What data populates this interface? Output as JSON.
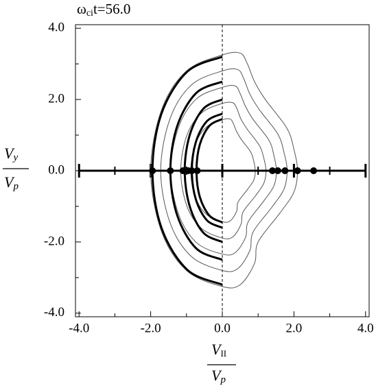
{
  "chart_data": {
    "type": "contour",
    "title": {
      "symbol": "ω",
      "subscript": "ci",
      "rest": "t=56.0"
    },
    "xlabel": {
      "numerator": {
        "main": "V",
        "sub": "II"
      },
      "denominator": {
        "main": "V",
        "sub": "p"
      }
    },
    "ylabel": {
      "numerator": {
        "main": "V",
        "sub": "y"
      },
      "denominator": {
        "main": "V",
        "sub": "p"
      }
    },
    "xlim": [
      -4.1,
      4.1
    ],
    "ylim": [
      -4.1,
      4.1
    ],
    "xticks": [
      {
        "value": -4,
        "label": "-4.0"
      },
      {
        "value": -2,
        "label": "-2.0"
      },
      {
        "value": 0,
        "label": "0.0"
      },
      {
        "value": 2,
        "label": "2.0"
      },
      {
        "value": 4,
        "label": "4.0"
      }
    ],
    "yticks": [
      {
        "value": -4,
        "label": "-4.0"
      },
      {
        "value": -2,
        "label": "-2.0"
      },
      {
        "value": 0,
        "label": "0.0"
      },
      {
        "value": 2,
        "label": "2.0"
      },
      {
        "value": 4,
        "label": "4.0"
      }
    ],
    "minor_ticks": [
      -3,
      -1,
      1,
      3
    ],
    "contour_color": "#555555",
    "arc_color": "#000000",
    "point_color": "#000000",
    "contours": [
      {
        "x": [
          0,
          0.5,
          0.7,
          0.9,
          1.2,
          1.8,
          2.0,
          2.1,
          2.0,
          1.6,
          1.0,
          0.9,
          0.5,
          0,
          -1.0,
          -1.7,
          -2.0,
          -1.7,
          -1.0
        ],
        "y": [
          3.25,
          3.3,
          3.0,
          2.5,
          2.0,
          1.2,
          0.6,
          0,
          -0.6,
          -1.2,
          -2.0,
          -2.6,
          -3.2,
          -3.25,
          -2.8,
          -1.7,
          0,
          1.7,
          2.8
        ]
      },
      {
        "x": [
          0,
          0.43,
          0.6,
          0.77,
          1.03,
          1.55,
          1.72,
          1.81,
          1.72,
          1.38,
          0.86,
          0.77,
          0.43,
          0,
          -0.86,
          -1.46,
          -1.72,
          -1.46,
          -0.86
        ],
        "y": [
          2.8,
          2.84,
          2.58,
          2.15,
          1.72,
          1.03,
          0.52,
          0,
          -0.52,
          -1.03,
          -1.72,
          -2.24,
          -2.75,
          -2.8,
          -2.41,
          -1.46,
          0,
          1.46,
          2.41
        ]
      },
      {
        "x": [
          0,
          0.36,
          0.5,
          0.65,
          0.86,
          1.3,
          1.44,
          1.51,
          1.44,
          1.15,
          0.72,
          0.65,
          0.36,
          0,
          -0.72,
          -1.22,
          -1.44,
          -1.22,
          -0.72
        ],
        "y": [
          2.34,
          2.38,
          2.16,
          1.8,
          1.44,
          0.86,
          0.43,
          0,
          -0.43,
          -0.86,
          -1.44,
          -1.87,
          -2.3,
          -2.34,
          -2.02,
          -1.22,
          0,
          1.22,
          2.02
        ]
      },
      {
        "x": [
          0,
          0.29,
          0.41,
          0.52,
          0.7,
          1.04,
          1.16,
          1.22,
          1.16,
          0.93,
          0.58,
          0.52,
          0.29,
          0,
          -0.58,
          -0.99,
          -1.16,
          -0.99,
          -0.58
        ],
        "y": [
          1.89,
          1.91,
          1.74,
          1.45,
          1.16,
          0.7,
          0.35,
          0,
          -0.35,
          -0.7,
          -1.16,
          -1.51,
          -1.86,
          -1.89,
          -1.62,
          -0.99,
          0,
          0.99,
          1.62
        ]
      },
      {
        "x": [
          0,
          0.22,
          0.31,
          0.4,
          0.53,
          0.79,
          0.88,
          0.92,
          0.88,
          0.7,
          0.44,
          0.4,
          0.22,
          0,
          -0.44,
          -0.75,
          -0.88,
          -0.75,
          -0.44
        ],
        "y": [
          1.43,
          1.45,
          1.32,
          1.1,
          0.88,
          0.53,
          0.26,
          0,
          -0.26,
          -0.53,
          -0.88,
          -1.14,
          -1.41,
          -1.43,
          -1.23,
          -0.75,
          0,
          0.75,
          1.23
        ]
      }
    ],
    "arcs": [
      {
        "x": [
          0,
          -0.98,
          -1.7,
          -1.95,
          -1.7,
          -0.98,
          0
        ],
        "y": [
          3.2,
          2.78,
          1.6,
          0,
          -1.6,
          -2.78,
          -3.2
        ]
      },
      {
        "x": [
          0,
          -0.73,
          -1.26,
          -1.45,
          -1.26,
          -0.73,
          0
        ],
        "y": [
          2.5,
          2.18,
          1.25,
          0,
          -1.25,
          -2.18,
          -2.5
        ]
      },
      {
        "x": [
          0,
          -0.53,
          -0.91,
          -1.05,
          -0.91,
          -0.53,
          0
        ],
        "y": [
          2.0,
          1.74,
          1.0,
          0,
          -1.0,
          -1.74,
          -2.0
        ]
      },
      {
        "x": [
          0,
          -0.43,
          -0.74,
          -0.85,
          -0.74,
          -0.43,
          0
        ],
        "y": [
          1.6,
          1.39,
          0.8,
          0,
          -0.8,
          -1.39,
          -1.6
        ]
      },
      {
        "x": [
          0,
          -0.36,
          -0.63,
          -0.72,
          -0.63,
          -0.36,
          0
        ],
        "y": [
          1.45,
          1.26,
          0.73,
          0,
          -0.73,
          -1.26,
          -1.45
        ]
      }
    ],
    "points": {
      "x": [
        -1.95,
        -1.45,
        -1.1,
        -0.95,
        -0.85,
        -0.7,
        1.4,
        1.55,
        1.75,
        2.1,
        2.55
      ],
      "y": [
        0,
        0,
        0,
        0,
        0,
        0,
        0,
        0,
        0,
        0,
        0
      ]
    }
  }
}
